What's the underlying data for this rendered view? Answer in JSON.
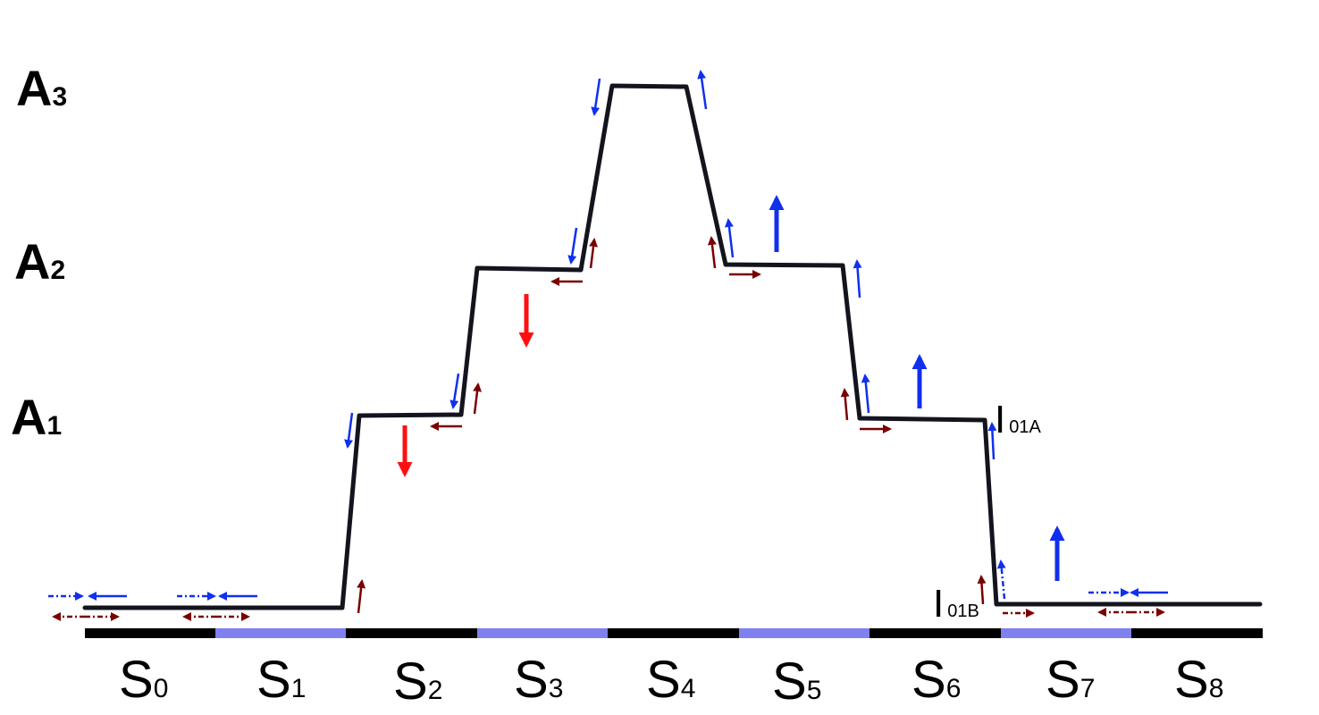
{
  "colors": {
    "profile_line": "#14141f",
    "track_dark": "#000000",
    "track_light": "#8080f0",
    "arrow_blue": "#1030ee",
    "arrow_dark_red": "#7a0000",
    "arrow_red": "#ff1010",
    "text": "#000000"
  },
  "levels": [
    {
      "main": "A",
      "sub": "3"
    },
    {
      "main": "A",
      "sub": "2"
    },
    {
      "main": "A",
      "sub": "1"
    }
  ],
  "stations": [
    {
      "main": "S",
      "sub": "0"
    },
    {
      "main": "S",
      "sub": "1"
    },
    {
      "main": "S",
      "sub": "2"
    },
    {
      "main": "S",
      "sub": "3"
    },
    {
      "main": "S",
      "sub": "4"
    },
    {
      "main": "S",
      "sub": "5"
    },
    {
      "main": "S",
      "sub": "6"
    },
    {
      "main": "S",
      "sub": "7"
    },
    {
      "main": "S",
      "sub": "8"
    }
  ],
  "annotations": {
    "upper": {
      "main": "I",
      "sub": "01A"
    },
    "lower": {
      "main": "I",
      "sub": "01B"
    }
  }
}
